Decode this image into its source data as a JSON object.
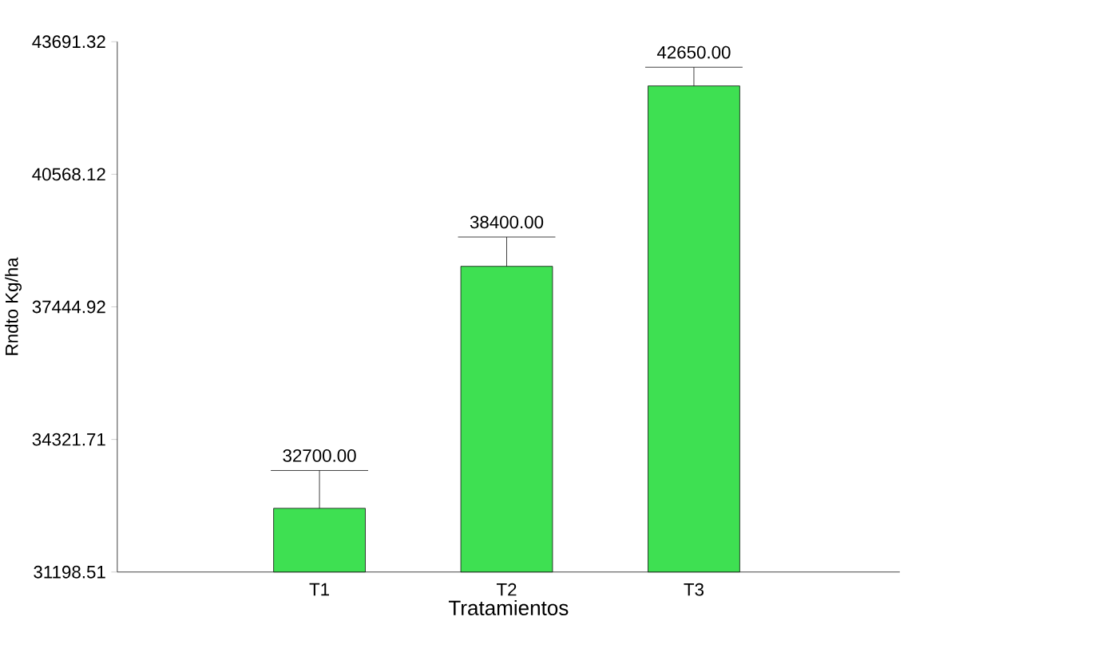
{
  "chart_data": {
    "type": "bar",
    "xlabel": "Tratamientos",
    "ylabel": "Rndto Kg/ha",
    "categories": [
      "T1",
      "T2",
      "T3"
    ],
    "values": [
      32700,
      38400,
      42650
    ],
    "errors": [
      [
        32700,
        33590
      ],
      [
        38400,
        39090
      ],
      [
        42650,
        43090
      ]
    ],
    "value_labels": [
      "32700.00",
      "38400.00",
      "42650.00"
    ],
    "color": "#3ee052",
    "ylim": [
      31198.51,
      43691.32
    ],
    "yticks": [
      31198.51,
      34321.71,
      37444.92,
      40568.12,
      43691.32
    ],
    "grid": false
  }
}
